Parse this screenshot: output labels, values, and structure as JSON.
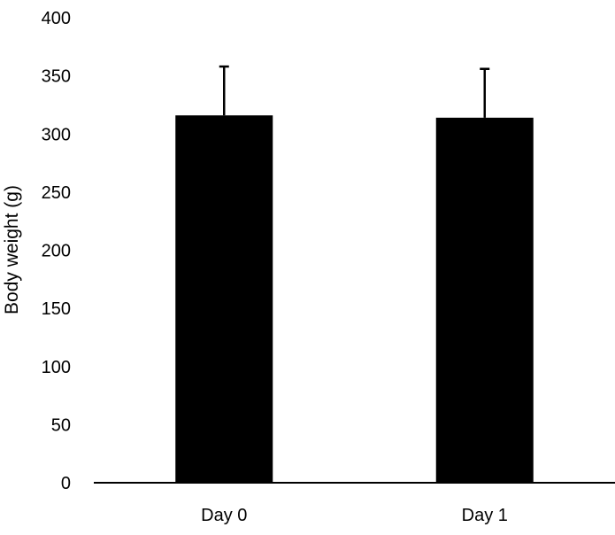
{
  "chart_data": {
    "type": "bar",
    "categories": [
      "Day 0",
      "Day 1"
    ],
    "values": [
      316,
      314
    ],
    "error_upper": [
      42,
      42
    ],
    "ylabel": "Body weight (g)",
    "xlabel": "",
    "ylim": [
      0,
      400
    ],
    "yticks": [
      0,
      50,
      100,
      150,
      200,
      250,
      300,
      350,
      400
    ],
    "grid": false,
    "legend": "none",
    "bar_color": "#000000",
    "axis_color": "#000000"
  }
}
